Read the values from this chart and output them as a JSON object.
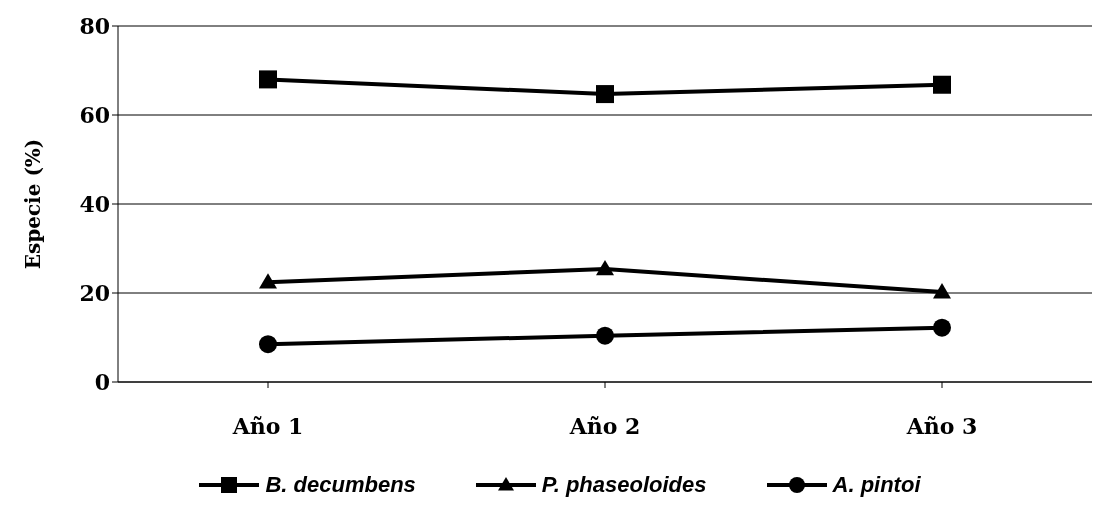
{
  "chart_data": {
    "type": "line",
    "ylabel": "Especie (%)",
    "categories": [
      "Año 1",
      "Año 2",
      "Año 3"
    ],
    "series": [
      {
        "name": "B. decumbens",
        "color": "#000000",
        "marker": "square",
        "values": [
          68,
          64.7,
          66.8
        ]
      },
      {
        "name": "P. phaseoloides",
        "color": "#000000",
        "marker": "triangle",
        "values": [
          22.4,
          25.4,
          20.2
        ]
      },
      {
        "name": "A. pintoi",
        "color": "#000000",
        "marker": "circle",
        "values": [
          8.5,
          10.4,
          12.2
        ]
      }
    ],
    "ylim": [
      0,
      80
    ],
    "yticks": [
      0,
      20,
      40,
      60,
      80
    ],
    "grid": "y",
    "legend": "bottom",
    "line_style": "solid"
  }
}
